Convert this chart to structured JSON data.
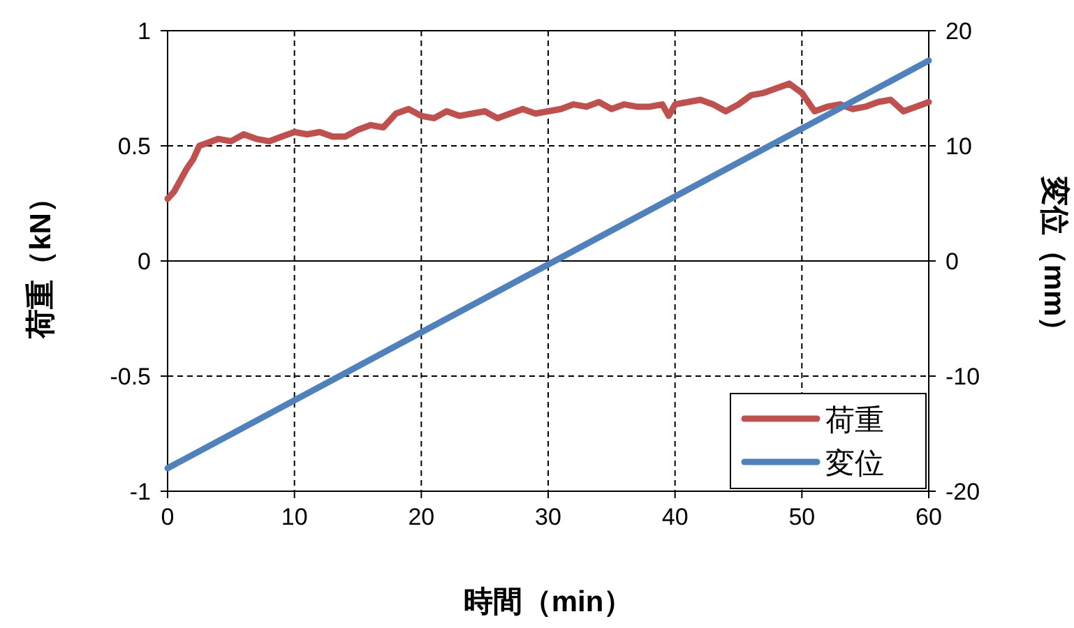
{
  "chart_data": {
    "type": "line",
    "xlabel": "時間（min）",
    "ylabel": "荷重（kN）",
    "y2label": "変位（mm）",
    "xlim": [
      0,
      60
    ],
    "xticks": [
      0,
      10,
      20,
      30,
      40,
      50,
      60
    ],
    "ylim": [
      -1,
      1
    ],
    "yticks": [
      -1,
      -0.5,
      0,
      0.5,
      1
    ],
    "y2lim": [
      -20,
      20
    ],
    "y2ticks": [
      -20,
      -10,
      0,
      10,
      20
    ],
    "grid": true,
    "legend": "bottom right",
    "line_style": "solid",
    "series": [
      {
        "name": "荷重",
        "color": "#c0504d",
        "x": [
          0,
          0.5,
          1,
          1.5,
          2,
          2.5,
          3,
          4,
          5,
          6,
          7,
          8,
          9,
          10,
          11,
          12,
          13,
          14,
          15,
          16,
          17,
          18,
          19,
          20,
          21,
          22,
          23,
          24,
          25,
          26,
          27,
          28,
          29,
          30,
          31,
          32,
          33,
          34,
          35,
          36,
          37,
          38,
          39,
          39.5,
          40,
          41,
          42,
          43,
          44,
          45,
          46,
          47,
          48,
          49,
          50,
          51,
          52,
          53,
          54,
          55,
          56,
          57,
          58,
          59,
          60
        ],
        "values": [
          0.27,
          0.3,
          0.35,
          0.4,
          0.44,
          0.5,
          0.51,
          0.53,
          0.52,
          0.55,
          0.53,
          0.52,
          0.54,
          0.56,
          0.55,
          0.56,
          0.54,
          0.54,
          0.57,
          0.59,
          0.58,
          0.64,
          0.66,
          0.63,
          0.62,
          0.65,
          0.63,
          0.64,
          0.65,
          0.62,
          0.64,
          0.66,
          0.64,
          0.65,
          0.66,
          0.68,
          0.67,
          0.69,
          0.66,
          0.68,
          0.67,
          0.67,
          0.68,
          0.63,
          0.68,
          0.69,
          0.7,
          0.68,
          0.65,
          0.68,
          0.72,
          0.73,
          0.75,
          0.77,
          0.73,
          0.65,
          0.67,
          0.68,
          0.66,
          0.67,
          0.69,
          0.7,
          0.65,
          0.67,
          0.69
        ]
      },
      {
        "name": "変位",
        "color": "#4f81bd",
        "axis": "y2",
        "x": [
          0,
          60
        ],
        "values": [
          -18,
          17.4
        ]
      }
    ]
  }
}
